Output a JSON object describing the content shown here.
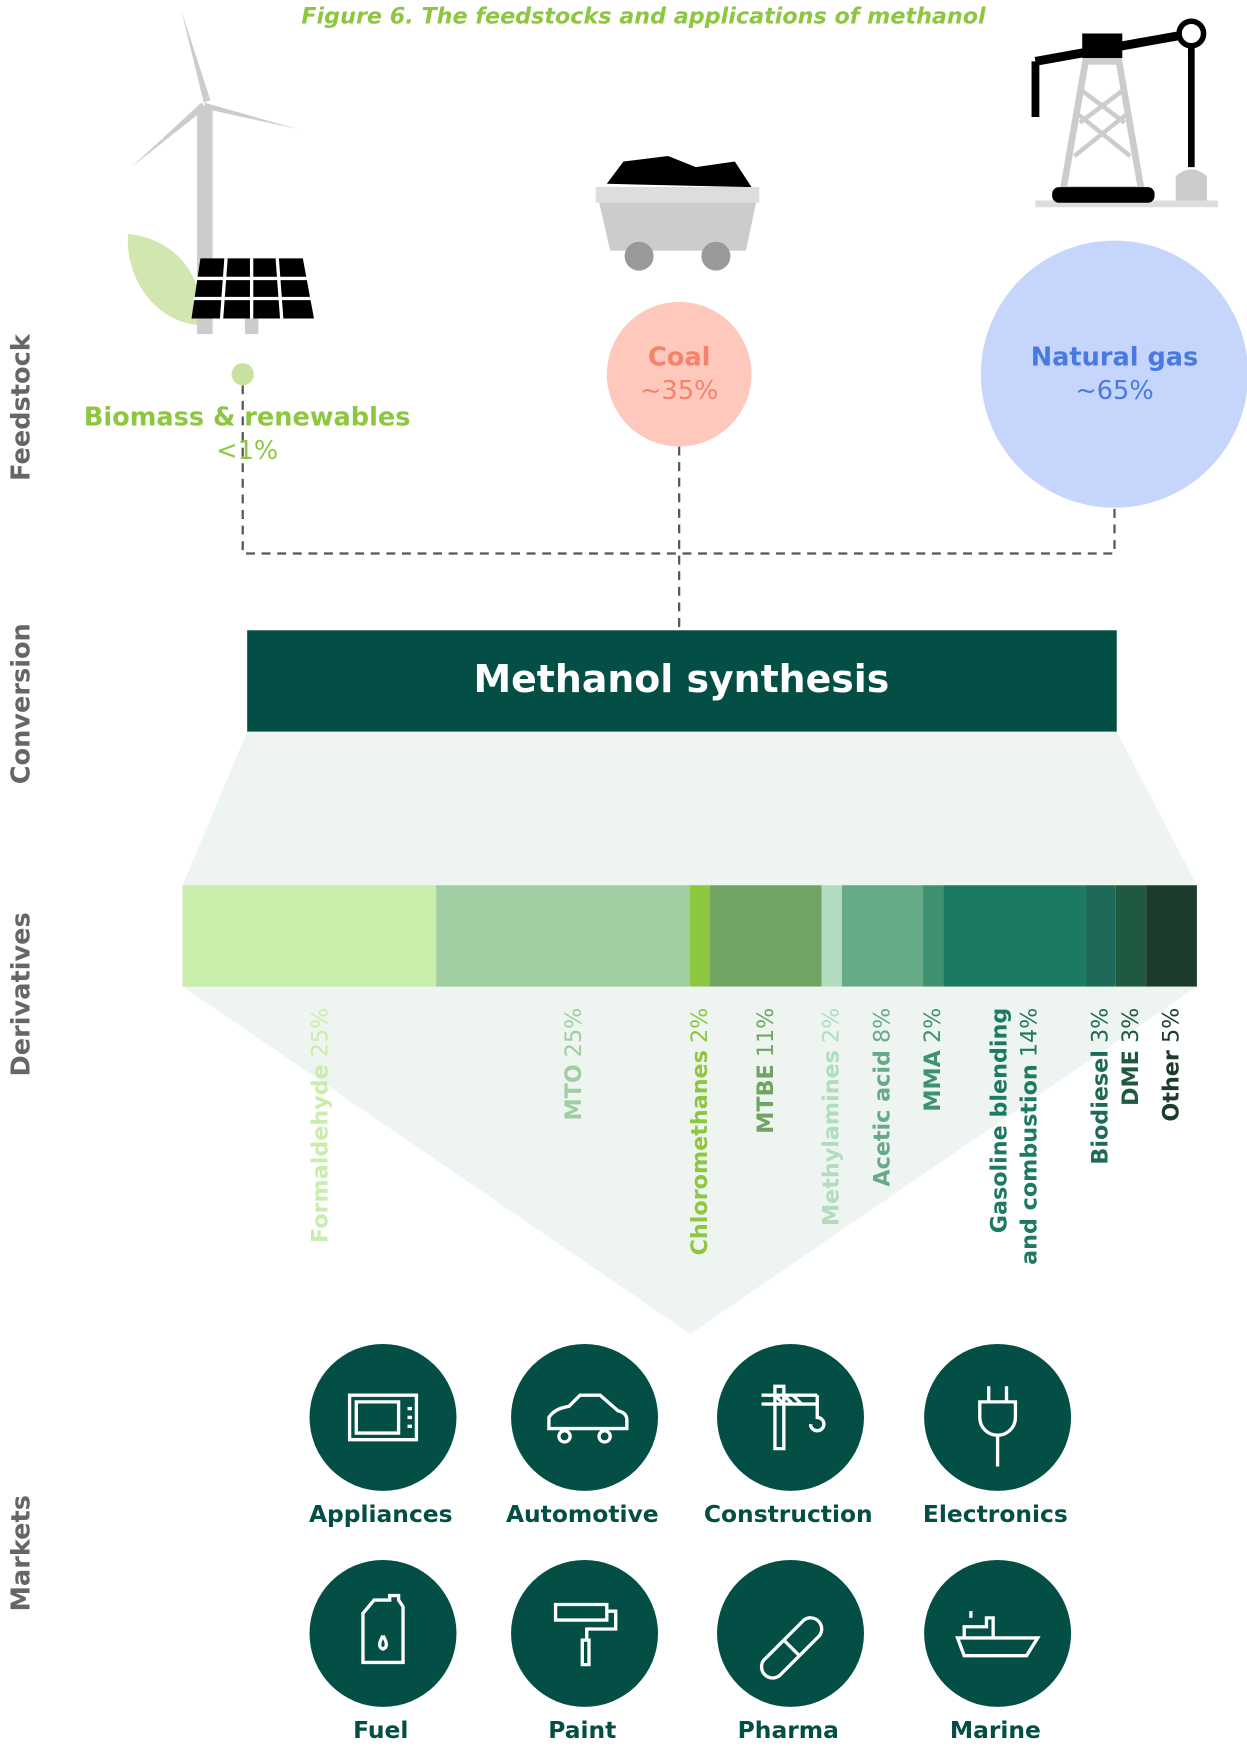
{
  "title": "Figure 6. The feedstocks and applications of methanol",
  "stages": [
    "Feedstock",
    "Conversion",
    "Derivatives",
    "Markets"
  ],
  "feedstocks": [
    {
      "name": "Biomass & renewables",
      "share": "<1%"
    },
    {
      "name": "Coal",
      "share": "~35%"
    },
    {
      "name": "Natural gas",
      "share": "~65%"
    }
  ],
  "conversion": "Methanol synthesis",
  "chart_data": {
    "type": "stacked-bar",
    "categories": [
      "Formaldehyde",
      "MTO",
      "Chloromethanes",
      "MTBE",
      "Methylamines",
      "Acetic acid",
      "MMA",
      [
        "Gasoline blending",
        "and combustion"
      ],
      "Biodiesel",
      "DME",
      "Other"
    ],
    "values": [
      25,
      25,
      2,
      11,
      2,
      8,
      2,
      14,
      3,
      3,
      5
    ],
    "value_labels": [
      "25%",
      "25%",
      "2%",
      "11%",
      "2%",
      "8%",
      "2%",
      "14%",
      "3%",
      "3%",
      "5%"
    ],
    "colors": [
      "#c9edaa",
      "#a0cda2",
      "#8dc63f",
      "#6fa463",
      "#b2dcc0",
      "#66aa88",
      "#3e9272",
      "#1d7a62",
      "#1d6a58",
      "#1f5a40",
      "#1c3b2b"
    ]
  },
  "markets": [
    "Appliances",
    "Automotive",
    "Construction",
    "Electronics",
    "Fuel",
    "Paint",
    "Pharma",
    "Marine"
  ]
}
